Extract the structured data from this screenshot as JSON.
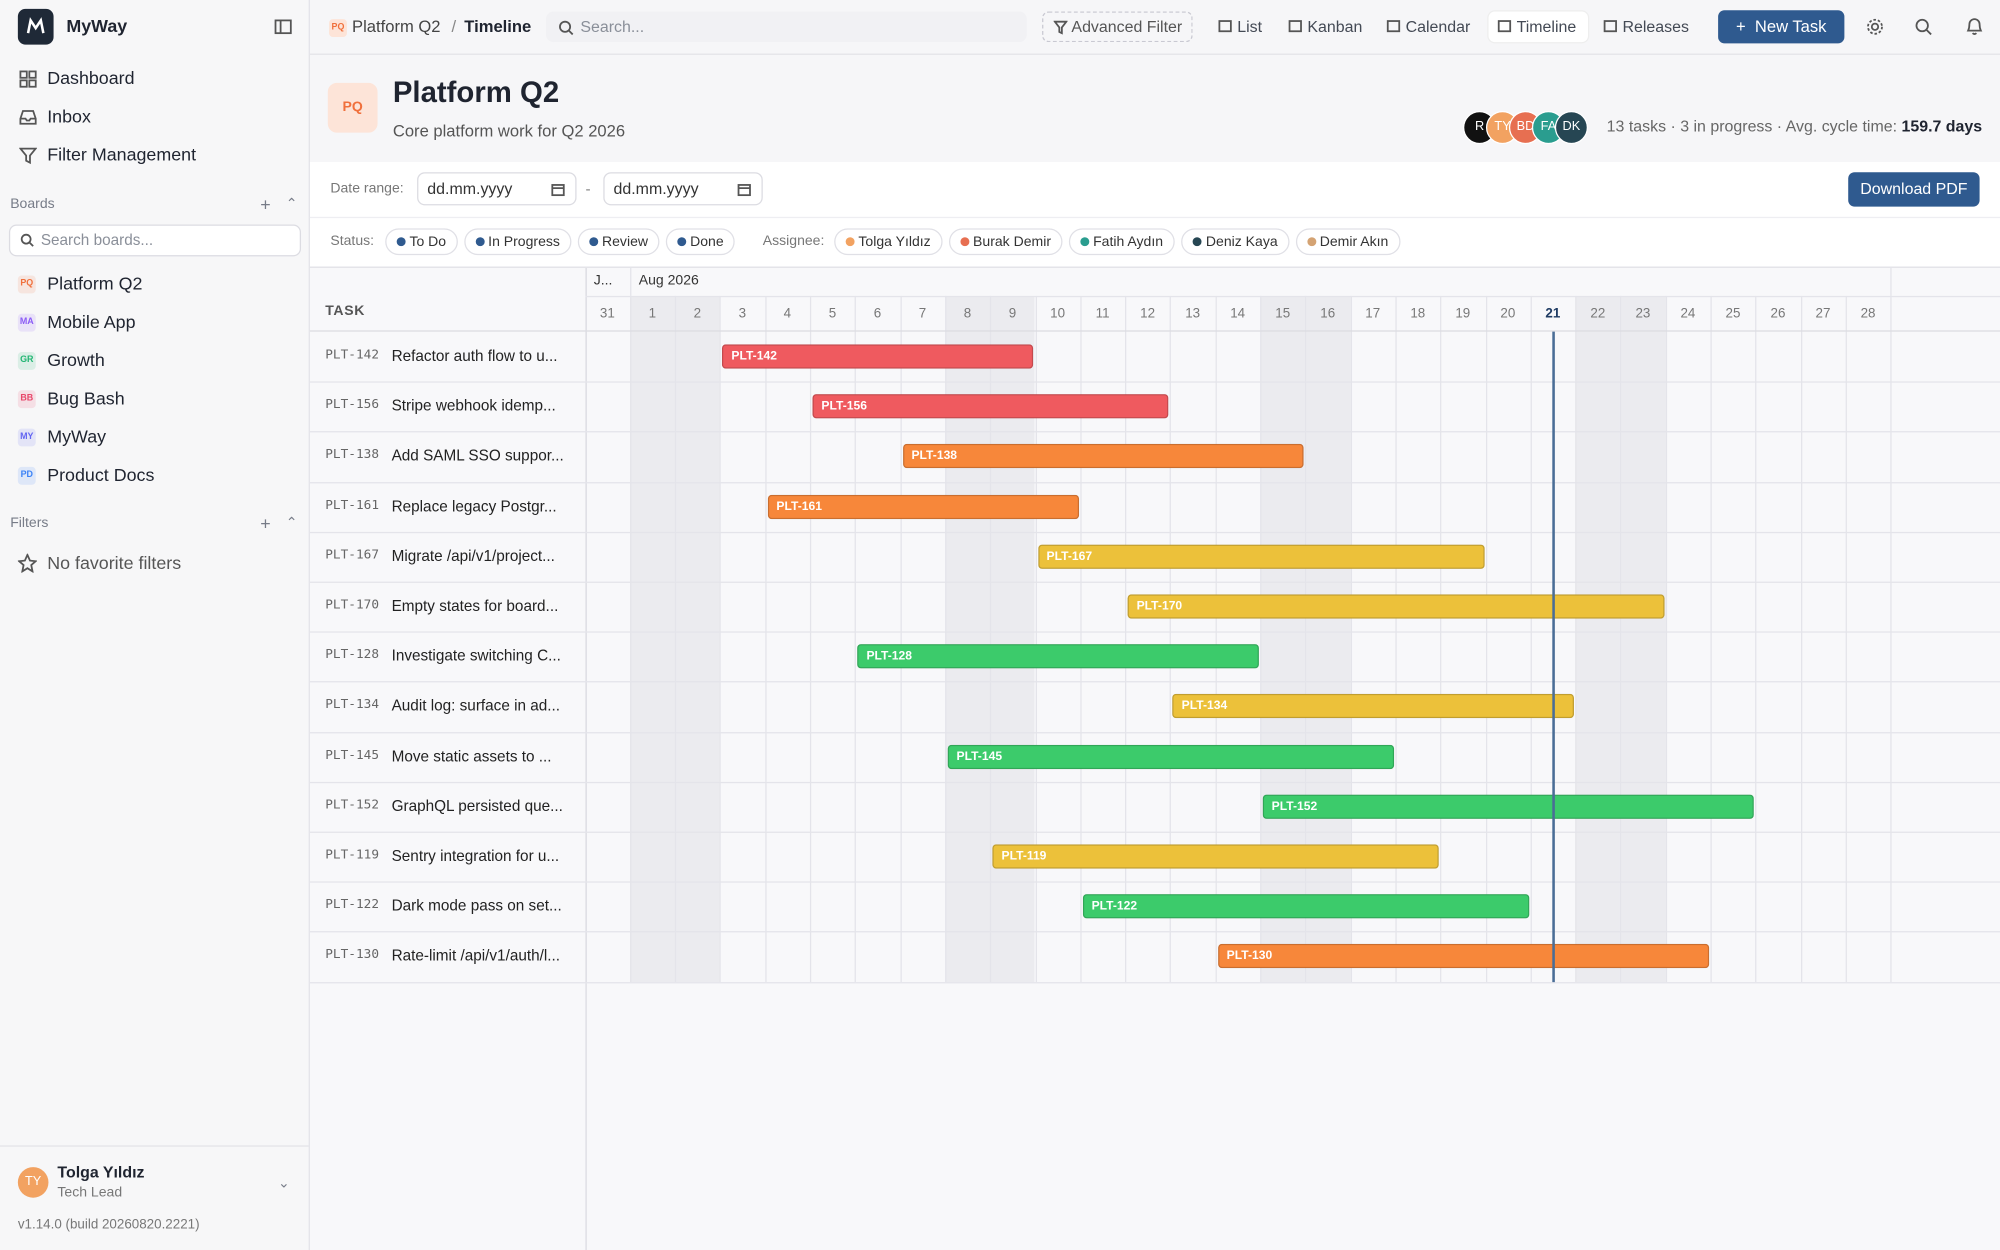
{
  "app": {
    "name": "MyWay"
  },
  "nav": [
    "Dashboard",
    "Inbox",
    "Filter Management"
  ],
  "boards_label": "Boards",
  "board_search": "Search boards...",
  "boards": [
    {
      "badge": "PQ",
      "name": "Platform Q2",
      "color": "#f0703c"
    },
    {
      "badge": "MA",
      "name": "Mobile App",
      "color": "#8b5cf6"
    },
    {
      "badge": "GR",
      "name": "Growth",
      "color": "#22b573"
    },
    {
      "badge": "BB",
      "name": "Bug Bash",
      "color": "#e8466a"
    },
    {
      "badge": "MY",
      "name": "MyWay",
      "color": "#6366f1"
    },
    {
      "badge": "PD",
      "name": "Product Docs",
      "color": "#3b82f6"
    }
  ],
  "filters_label": "Filters",
  "no_filters": "No favorite filters",
  "user": {
    "initials": "TY",
    "name": "Tolga Yıldız",
    "role": "Tech Lead"
  },
  "version": "v1.14.0 (build 20260820.2221)",
  "breadcrumb": {
    "badge": "PQ",
    "project": "Platform Q2",
    "sep": "/",
    "page": "Timeline"
  },
  "search": "Search...",
  "advanced_filter": "Advanced Filter",
  "views": [
    "List",
    "Kanban",
    "Calendar",
    "Timeline",
    "Releases"
  ],
  "active_view": "Timeline",
  "new_task": "New Task",
  "project": {
    "badge": "PQ",
    "title": "Platform Q2",
    "subtitle": "Core platform work for Q2 2026",
    "avatars": [
      {
        "initials": "R",
        "color": "#111111"
      },
      {
        "initials": "TY",
        "color": "#f2a261"
      },
      {
        "initials": "BD",
        "color": "#e76f51"
      },
      {
        "initials": "FA",
        "color": "#2a9d8f"
      },
      {
        "initials": "DK",
        "color": "#264653"
      }
    ],
    "stats": "13 tasks · 3 in progress · Avg. cycle time:",
    "cycle": "159.7 days"
  },
  "date_range": {
    "label": "Date range:",
    "from": "dd.mm.yyyy",
    "sep": "-",
    "to": "dd.mm.yyyy"
  },
  "download": "Download PDF",
  "status_label": "Status:",
  "statuses": [
    {
      "name": "To Do",
      "color": "#2f5a8f"
    },
    {
      "name": "In Progress",
      "color": "#2f5a8f"
    },
    {
      "name": "Review",
      "color": "#2f5a8f"
    },
    {
      "name": "Done",
      "color": "#2f5a8f"
    }
  ],
  "assignee_label": "Assignee:",
  "assignees": [
    {
      "name": "Tolga Yıldız",
      "color": "#f2a261"
    },
    {
      "name": "Burak Demir",
      "color": "#e76f51"
    },
    {
      "name": "Fatih Aydın",
      "color": "#2a9d8f"
    },
    {
      "name": "Deniz Kaya",
      "color": "#264653"
    },
    {
      "name": "Demir Akın",
      "color": "#d4a373"
    }
  ],
  "timeline": {
    "task_header": "TASK",
    "months": [
      {
        "label": "J...",
        "first_day": 31
      },
      {
        "label": "Aug 2026",
        "first_day": 1
      }
    ],
    "days": [
      31,
      1,
      2,
      3,
      4,
      5,
      6,
      7,
      8,
      9,
      10,
      11,
      12,
      13,
      14,
      15,
      16,
      17,
      18,
      19,
      20,
      21,
      22,
      23,
      24,
      25,
      26,
      27,
      28
    ],
    "weekends": [
      1,
      2,
      8,
      9,
      15,
      16,
      22,
      23
    ],
    "today": 21,
    "tasks": [
      {
        "key": "PLT-142",
        "title": "Refactor auth flow to u...",
        "start": 3,
        "end": 9,
        "color": "#ef5a5f"
      },
      {
        "key": "PLT-156",
        "title": "Stripe webhook idemp...",
        "start": 5,
        "end": 12,
        "color": "#ef5a5f"
      },
      {
        "key": "PLT-138",
        "title": "Add SAML SSO suppor...",
        "start": 7,
        "end": 15,
        "color": "#f7873a"
      },
      {
        "key": "PLT-161",
        "title": "Replace legacy Postgr...",
        "start": 4,
        "end": 10,
        "color": "#f7873a"
      },
      {
        "key": "PLT-167",
        "title": "Migrate /api/v1/project...",
        "start": 10,
        "end": 19,
        "color": "#ecc13a"
      },
      {
        "key": "PLT-170",
        "title": "Empty states for board...",
        "start": 12,
        "end": 23,
        "color": "#ecc13a"
      },
      {
        "key": "PLT-128",
        "title": "Investigate switching C...",
        "start": 6,
        "end": 14,
        "color": "#3ccb6b"
      },
      {
        "key": "PLT-134",
        "title": "Audit log: surface in ad...",
        "start": 13,
        "end": 21,
        "color": "#ecc13a"
      },
      {
        "key": "PLT-145",
        "title": "Move static assets to ...",
        "start": 8,
        "end": 17,
        "color": "#3ccb6b"
      },
      {
        "key": "PLT-152",
        "title": "GraphQL persisted que...",
        "start": 15,
        "end": 25,
        "color": "#3ccb6b"
      },
      {
        "key": "PLT-119",
        "title": "Sentry integration for u...",
        "start": 9,
        "end": 18,
        "color": "#ecc13a"
      },
      {
        "key": "PLT-122",
        "title": "Dark mode pass on set...",
        "start": 11,
        "end": 20,
        "color": "#3ccb6b"
      },
      {
        "key": "PLT-130",
        "title": "Rate-limit /api/v1/auth/l...",
        "start": 14,
        "end": 24,
        "color": "#f7873a"
      }
    ]
  }
}
